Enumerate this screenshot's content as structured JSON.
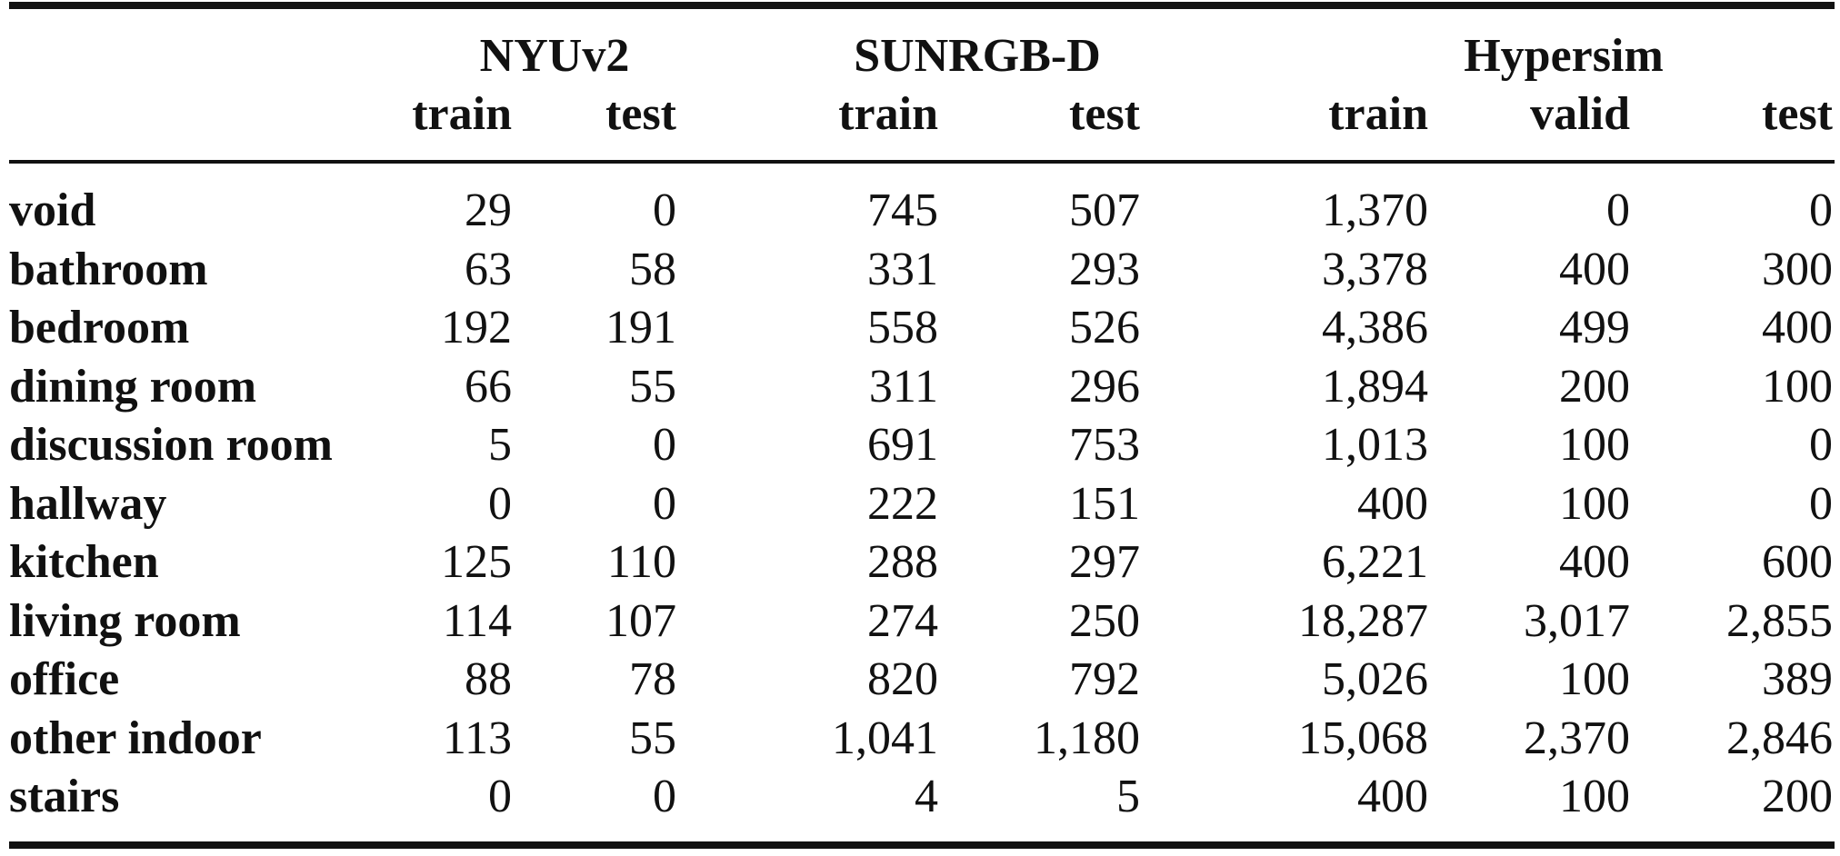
{
  "groups": {
    "nyu": "NYUv2",
    "sun": "SUNRGB-D",
    "hyp": "Hypersim"
  },
  "subheaders": [
    "train",
    "test",
    "train",
    "test",
    "train",
    "valid",
    "test"
  ],
  "rows": [
    {
      "label": "void",
      "values": [
        "29",
        "0",
        "745",
        "507",
        "1,370",
        "0",
        "0"
      ]
    },
    {
      "label": "bathroom",
      "values": [
        "63",
        "58",
        "331",
        "293",
        "3,378",
        "400",
        "300"
      ]
    },
    {
      "label": "bedroom",
      "values": [
        "192",
        "191",
        "558",
        "526",
        "4,386",
        "499",
        "400"
      ]
    },
    {
      "label": "dining room",
      "values": [
        "66",
        "55",
        "311",
        "296",
        "1,894",
        "200",
        "100"
      ]
    },
    {
      "label": "discussion room",
      "values": [
        "5",
        "0",
        "691",
        "753",
        "1,013",
        "100",
        "0"
      ]
    },
    {
      "label": "hallway",
      "values": [
        "0",
        "0",
        "222",
        "151",
        "400",
        "100",
        "0"
      ]
    },
    {
      "label": "kitchen",
      "values": [
        "125",
        "110",
        "288",
        "297",
        "6,221",
        "400",
        "600"
      ]
    },
    {
      "label": "living room",
      "values": [
        "114",
        "107",
        "274",
        "250",
        "18,287",
        "3,017",
        "2,855"
      ]
    },
    {
      "label": "office",
      "values": [
        "88",
        "78",
        "820",
        "792",
        "5,026",
        "100",
        "389"
      ]
    },
    {
      "label": "other indoor",
      "values": [
        "113",
        "55",
        "1,041",
        "1,180",
        "15,068",
        "2,370",
        "2,846"
      ]
    },
    {
      "label": "stairs",
      "values": [
        "0",
        "0",
        "4",
        "5",
        "400",
        "100",
        "200"
      ]
    }
  ]
}
